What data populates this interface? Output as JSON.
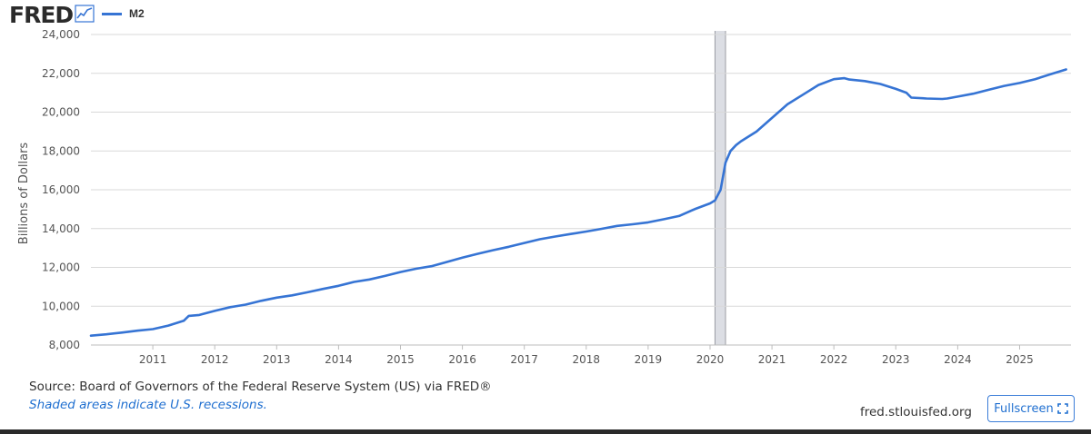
{
  "header": {
    "logo_text": "FRED",
    "series_label": "M2"
  },
  "footer": {
    "source": "Source: Board of Governors of the Federal Reserve System (US) via FRED®",
    "note": "Shaded areas indicate U.S. recessions.",
    "site": "fred.stlouisfed.org",
    "fullscreen_label": "Fullscreen"
  },
  "colors": {
    "series_line": "#3674d4",
    "recession_fill": "#dcdee4",
    "recession_edge": "#9a9ca3",
    "grid": "#d9d9d9",
    "accent": "#1f6fd0"
  },
  "icons": {
    "logo_graph": "line-graph-icon",
    "fullscreen": "expand-corners-icon"
  },
  "chart_data": {
    "type": "line",
    "title": "",
    "xlabel": "",
    "ylabel": "Billions of Dollars",
    "xlim": [
      2010.0,
      2025.83
    ],
    "ylim": [
      8000,
      24000
    ],
    "x_ticks": [
      2011,
      2012,
      2013,
      2014,
      2015,
      2016,
      2017,
      2018,
      2019,
      2020,
      2021,
      2022,
      2023,
      2024,
      2025
    ],
    "x_tick_labels": [
      "2011",
      "2012",
      "2013",
      "2014",
      "2015",
      "2016",
      "2017",
      "2018",
      "2019",
      "2020",
      "2021",
      "2022",
      "2023",
      "2024",
      "2025"
    ],
    "y_ticks": [
      8000,
      10000,
      12000,
      14000,
      16000,
      18000,
      20000,
      22000,
      24000
    ],
    "y_tick_labels": [
      "8,000",
      "10,000",
      "12,000",
      "14,000",
      "16,000",
      "18,000",
      "20,000",
      "22,000",
      "24,000"
    ],
    "grid": "horizontal",
    "legend": "top-left",
    "recessions": [
      [
        2020.08,
        2020.25
      ]
    ],
    "series": [
      {
        "name": "M2",
        "x": [
          2010.0,
          2010.25,
          2010.5,
          2010.75,
          2011.0,
          2011.25,
          2011.5,
          2011.58,
          2011.75,
          2012.0,
          2012.25,
          2012.5,
          2012.75,
          2013.0,
          2013.25,
          2013.5,
          2013.75,
          2014.0,
          2014.25,
          2014.5,
          2014.75,
          2015.0,
          2015.25,
          2015.5,
          2015.75,
          2016.0,
          2016.25,
          2016.5,
          2016.75,
          2017.0,
          2017.25,
          2017.5,
          2017.75,
          2018.0,
          2018.25,
          2018.5,
          2018.75,
          2019.0,
          2019.25,
          2019.5,
          2019.75,
          2020.0,
          2020.08,
          2020.17,
          2020.25,
          2020.33,
          2020.42,
          2020.5,
          2020.75,
          2021.0,
          2021.25,
          2021.5,
          2021.75,
          2022.0,
          2022.17,
          2022.25,
          2022.5,
          2022.75,
          2023.0,
          2023.17,
          2023.25,
          2023.5,
          2023.75,
          2023.83,
          2024.0,
          2024.25,
          2024.5,
          2024.75,
          2025.0,
          2025.25,
          2025.5,
          2025.75
        ],
        "values": [
          8480,
          8550,
          8640,
          8740,
          8820,
          9000,
          9250,
          9500,
          9550,
          9760,
          9950,
          10080,
          10280,
          10440,
          10560,
          10720,
          10890,
          11050,
          11250,
          11380,
          11560,
          11760,
          11930,
          12060,
          12280,
          12500,
          12700,
          12890,
          13060,
          13260,
          13450,
          13590,
          13720,
          13850,
          13990,
          14140,
          14220,
          14320,
          14480,
          14650,
          15000,
          15300,
          15450,
          16000,
          17400,
          18000,
          18300,
          18500,
          19000,
          19700,
          20400,
          20900,
          21400,
          21700,
          21750,
          21680,
          21600,
          21450,
          21200,
          21000,
          20750,
          20700,
          20680,
          20700,
          20800,
          20950,
          21150,
          21350,
          21500,
          21700,
          21950,
          22200
        ]
      }
    ]
  }
}
